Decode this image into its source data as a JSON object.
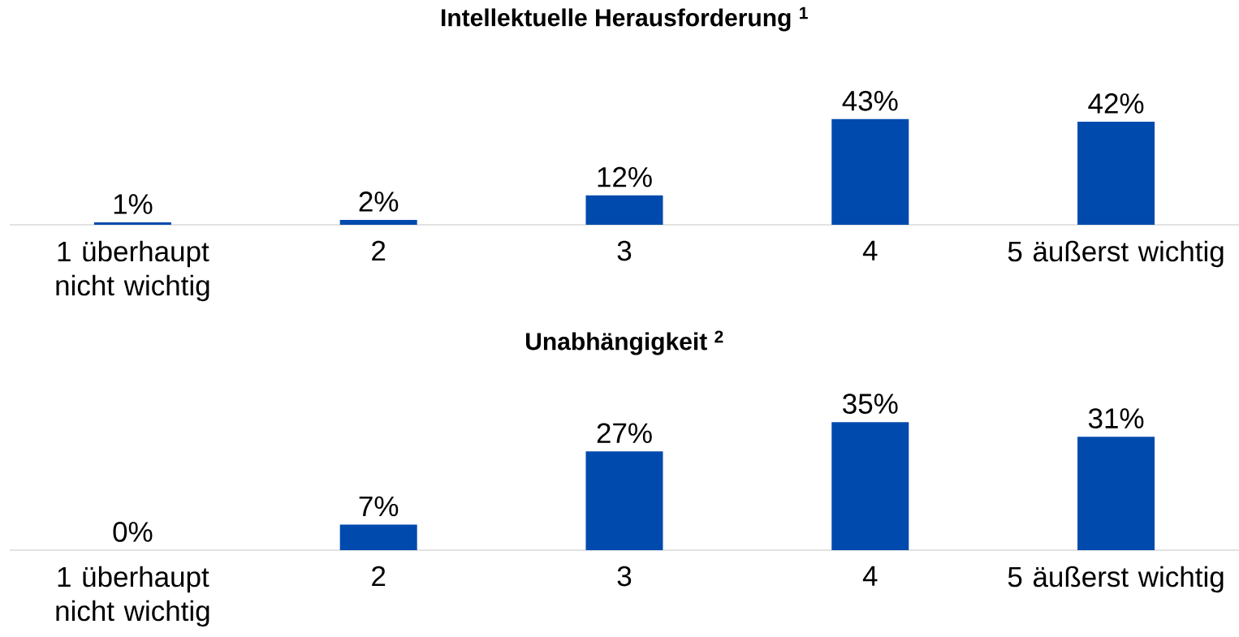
{
  "chart_data": [
    {
      "type": "bar",
      "title": "Intellektuelle Herausforderung $^{1}$",
      "categories": [
        "1 überhaupt nicht wichtig",
        "2",
        "3",
        "4",
        "5 äußerst wichtig"
      ],
      "values": [
        1,
        2,
        12,
        43,
        42
      ],
      "value_labels": [
        "1%",
        "2%",
        "12%",
        "43%",
        "42%"
      ],
      "color": "#004aad"
    },
    {
      "type": "bar",
      "title": "Unabhängigkeit $^{2}$",
      "categories": [
        "1 überhaupt nicht wichtig",
        "2",
        "3",
        "4",
        "5 äußerst wichtig"
      ],
      "values": [
        0,
        7,
        27,
        35,
        31
      ],
      "value_labels": [
        "0%",
        "7%",
        "27%",
        "35%",
        "31%"
      ],
      "color": "#004aad"
    }
  ]
}
